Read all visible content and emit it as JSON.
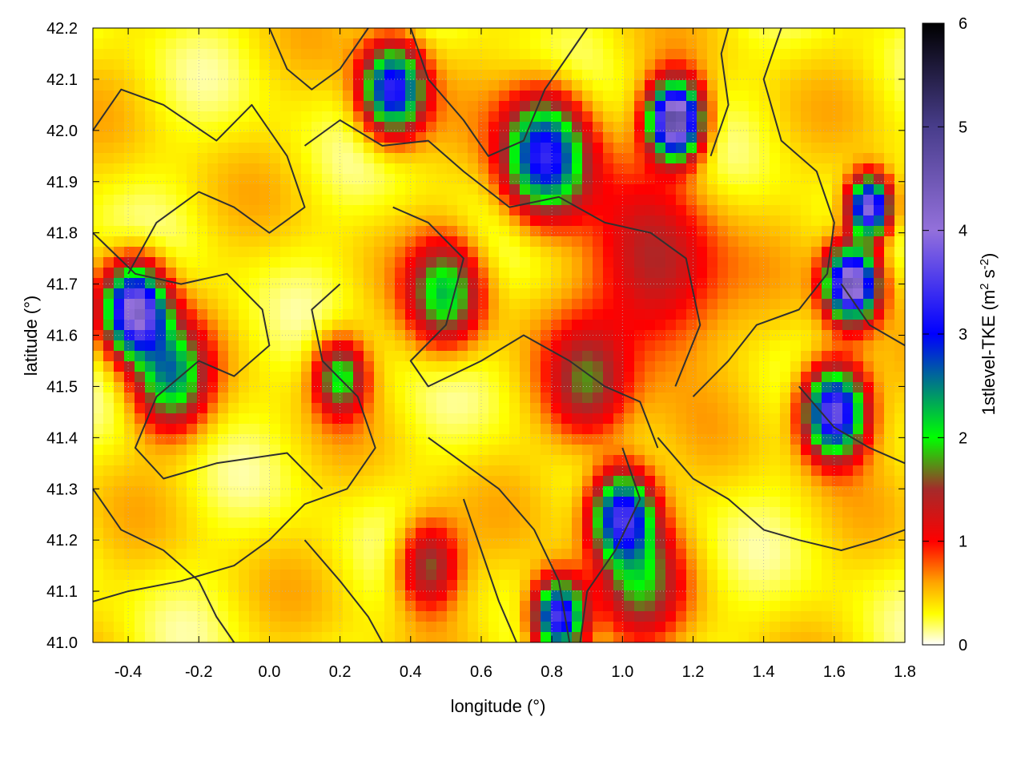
{
  "chart_data": {
    "type": "heatmap",
    "title": "",
    "xlabel": "longitude (°)",
    "ylabel": "latitude (°)",
    "colorbar_label_main": "1stlevel-TKE (m",
    "colorbar_label_sup1": "2",
    "colorbar_label_mid": " s",
    "colorbar_label_sup2": "-2",
    "colorbar_label_end": ")",
    "xlim": [
      -0.5,
      1.8
    ],
    "ylim": [
      41.0,
      42.2
    ],
    "zlim": [
      0,
      6
    ],
    "x_ticks": [
      "-0.4",
      "-0.2",
      "0.0",
      "0.2",
      "0.4",
      "0.6",
      "0.8",
      "1.0",
      "1.2",
      "1.4",
      "1.6",
      "1.8"
    ],
    "x_tick_values": [
      -0.4,
      -0.2,
      0.0,
      0.2,
      0.4,
      0.6,
      0.8,
      1.0,
      1.2,
      1.4,
      1.6,
      1.8
    ],
    "y_ticks": [
      "41.0",
      "41.1",
      "41.2",
      "41.3",
      "41.4",
      "41.5",
      "41.6",
      "41.7",
      "41.8",
      "41.9",
      "42.0",
      "42.1",
      "42.2"
    ],
    "y_tick_values": [
      41.0,
      41.1,
      41.2,
      41.3,
      41.4,
      41.5,
      41.6,
      41.7,
      41.8,
      41.9,
      42.0,
      42.1,
      42.2
    ],
    "colorbar_ticks": [
      "0",
      "1",
      "2",
      "3",
      "4",
      "5",
      "6"
    ],
    "colorbar_tick_values": [
      0,
      1,
      2,
      3,
      4,
      5,
      6
    ],
    "colormap": [
      {
        "value": 0.0,
        "color": "#ffffff"
      },
      {
        "value": 0.3,
        "color": "#ffff00"
      },
      {
        "value": 0.6,
        "color": "#ffa500"
      },
      {
        "value": 1.0,
        "color": "#ff0000"
      },
      {
        "value": 1.5,
        "color": "#a52a2a"
      },
      {
        "value": 2.0,
        "color": "#00ff00"
      },
      {
        "value": 3.0,
        "color": "#0000ff"
      },
      {
        "value": 4.0,
        "color": "#9370db"
      },
      {
        "value": 5.0,
        "color": "#483d8b"
      },
      {
        "value": 6.0,
        "color": "#000000"
      }
    ],
    "field_hotspots": [
      {
        "lon": -0.38,
        "lat": 41.65,
        "tke": 3.8,
        "spread": 0.06
      },
      {
        "lon": -0.28,
        "lat": 41.52,
        "tke": 2.0,
        "spread": 0.07
      },
      {
        "lon": 0.5,
        "lat": 41.68,
        "tke": 1.8,
        "spread": 0.07
      },
      {
        "lon": 1.1,
        "lat": 41.72,
        "tke": 1.2,
        "spread": 0.12
      },
      {
        "lon": 1.15,
        "lat": 42.02,
        "tke": 4.5,
        "spread": 0.05
      },
      {
        "lon": 0.78,
        "lat": 41.95,
        "tke": 3.0,
        "spread": 0.08
      },
      {
        "lon": 0.35,
        "lat": 42.08,
        "tke": 3.0,
        "spread": 0.06
      },
      {
        "lon": 1.65,
        "lat": 41.7,
        "tke": 4.2,
        "spread": 0.05
      },
      {
        "lon": 1.6,
        "lat": 41.45,
        "tke": 3.6,
        "spread": 0.06
      },
      {
        "lon": 1.0,
        "lat": 41.25,
        "tke": 3.0,
        "spread": 0.06
      },
      {
        "lon": 0.82,
        "lat": 41.05,
        "tke": 3.4,
        "spread": 0.05
      },
      {
        "lon": 0.2,
        "lat": 41.52,
        "tke": 1.7,
        "spread": 0.05
      },
      {
        "lon": 0.45,
        "lat": 41.15,
        "tke": 1.4,
        "spread": 0.06
      },
      {
        "lon": 1.05,
        "lat": 41.12,
        "tke": 1.3,
        "spread": 0.08
      },
      {
        "lon": 0.9,
        "lat": 41.5,
        "tke": 1.2,
        "spread": 0.08
      },
      {
        "lon": 1.7,
        "lat": 41.85,
        "tke": 3.8,
        "spread": 0.04
      }
    ],
    "contour_lines": [
      [
        [
          -0.5,
          42.0
        ],
        [
          -0.42,
          42.08
        ],
        [
          -0.3,
          42.05
        ],
        [
          -0.15,
          41.98
        ],
        [
          -0.05,
          42.05
        ],
        [
          0.05,
          41.95
        ],
        [
          0.1,
          41.85
        ],
        [
          0.0,
          41.8
        ],
        [
          -0.1,
          41.85
        ],
        [
          -0.2,
          41.88
        ],
        [
          -0.32,
          41.82
        ],
        [
          -0.4,
          41.72
        ]
      ],
      [
        [
          -0.5,
          41.8
        ],
        [
          -0.38,
          41.72
        ],
        [
          -0.25,
          41.7
        ],
        [
          -0.12,
          41.72
        ],
        [
          -0.02,
          41.65
        ],
        [
          0.0,
          41.58
        ],
        [
          -0.1,
          41.52
        ],
        [
          -0.2,
          41.55
        ],
        [
          -0.32,
          41.48
        ],
        [
          -0.38,
          41.38
        ],
        [
          -0.3,
          41.32
        ],
        [
          -0.15,
          41.35
        ],
        [
          0.05,
          41.37
        ],
        [
          0.15,
          41.3
        ]
      ],
      [
        [
          0.1,
          41.97
        ],
        [
          0.2,
          42.02
        ],
        [
          0.32,
          41.97
        ],
        [
          0.45,
          41.98
        ],
        [
          0.55,
          41.92
        ],
        [
          0.68,
          41.85
        ],
        [
          0.82,
          41.87
        ],
        [
          0.95,
          41.82
        ],
        [
          1.08,
          41.8
        ],
        [
          1.18,
          41.75
        ],
        [
          1.22,
          41.62
        ],
        [
          1.15,
          41.5
        ]
      ],
      [
        [
          0.35,
          41.85
        ],
        [
          0.45,
          41.82
        ],
        [
          0.55,
          41.75
        ],
        [
          0.5,
          41.62
        ],
        [
          0.4,
          41.55
        ],
        [
          0.45,
          41.5
        ],
        [
          0.6,
          41.55
        ],
        [
          0.72,
          41.6
        ],
        [
          0.85,
          41.55
        ],
        [
          0.95,
          41.5
        ],
        [
          1.05,
          41.47
        ],
        [
          1.1,
          41.38
        ]
      ],
      [
        [
          0.2,
          41.7
        ],
        [
          0.12,
          41.65
        ],
        [
          0.15,
          41.55
        ],
        [
          0.25,
          41.48
        ],
        [
          0.3,
          41.38
        ],
        [
          0.22,
          41.3
        ],
        [
          0.1,
          41.27
        ],
        [
          0.0,
          41.2
        ],
        [
          -0.1,
          41.15
        ],
        [
          -0.25,
          41.12
        ],
        [
          -0.4,
          41.1
        ],
        [
          -0.5,
          41.08
        ]
      ],
      [
        [
          0.45,
          41.4
        ],
        [
          0.55,
          41.35
        ],
        [
          0.65,
          41.3
        ],
        [
          0.75,
          41.22
        ],
        [
          0.82,
          41.12
        ],
        [
          0.85,
          41.0
        ]
      ],
      [
        [
          0.55,
          41.28
        ],
        [
          0.6,
          41.18
        ],
        [
          0.65,
          41.08
        ],
        [
          0.7,
          41.0
        ]
      ],
      [
        [
          1.0,
          41.38
        ],
        [
          1.05,
          41.28
        ],
        [
          0.98,
          41.18
        ],
        [
          0.9,
          41.1
        ],
        [
          0.88,
          41.0
        ]
      ],
      [
        [
          1.1,
          41.4
        ],
        [
          1.2,
          41.32
        ],
        [
          1.3,
          41.28
        ],
        [
          1.4,
          41.22
        ],
        [
          1.5,
          41.2
        ],
        [
          1.62,
          41.18
        ],
        [
          1.72,
          41.2
        ],
        [
          1.8,
          41.22
        ]
      ],
      [
        [
          1.2,
          41.48
        ],
        [
          1.3,
          41.55
        ],
        [
          1.38,
          41.62
        ],
        [
          1.5,
          41.65
        ],
        [
          1.58,
          41.72
        ],
        [
          1.6,
          41.82
        ],
        [
          1.55,
          41.92
        ],
        [
          1.45,
          41.98
        ],
        [
          1.4,
          42.1
        ],
        [
          1.45,
          42.2
        ]
      ],
      [
        [
          1.25,
          41.95
        ],
        [
          1.3,
          42.05
        ],
        [
          1.28,
          42.15
        ],
        [
          1.3,
          42.2
        ]
      ],
      [
        [
          0.4,
          42.2
        ],
        [
          0.45,
          42.1
        ],
        [
          0.55,
          42.02
        ],
        [
          0.62,
          41.95
        ],
        [
          0.72,
          41.98
        ],
        [
          0.78,
          42.08
        ],
        [
          0.85,
          42.15
        ],
        [
          0.9,
          42.2
        ]
      ],
      [
        [
          -0.5,
          41.3
        ],
        [
          -0.42,
          41.22
        ],
        [
          -0.3,
          41.18
        ],
        [
          -0.2,
          41.12
        ],
        [
          -0.15,
          41.05
        ],
        [
          -0.1,
          41.0
        ]
      ],
      [
        [
          0.1,
          41.2
        ],
        [
          0.2,
          41.12
        ],
        [
          0.28,
          41.05
        ],
        [
          0.32,
          41.0
        ]
      ],
      [
        [
          1.5,
          41.5
        ],
        [
          1.6,
          41.42
        ],
        [
          1.7,
          41.38
        ],
        [
          1.8,
          41.35
        ]
      ],
      [
        [
          1.62,
          41.7
        ],
        [
          1.7,
          41.62
        ],
        [
          1.8,
          41.58
        ]
      ],
      [
        [
          0.0,
          42.2
        ],
        [
          0.05,
          42.12
        ],
        [
          0.12,
          42.08
        ],
        [
          0.2,
          42.12
        ],
        [
          0.28,
          42.2
        ]
      ]
    ]
  }
}
